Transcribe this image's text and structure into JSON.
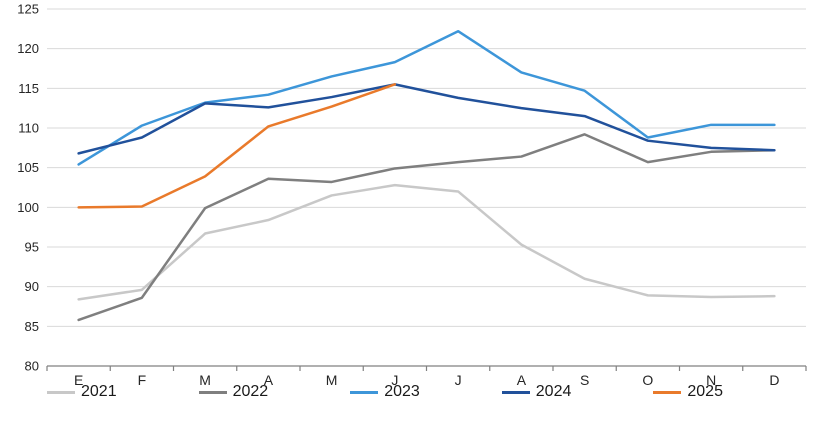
{
  "chart_data": {
    "type": "line",
    "title": "",
    "xlabel": "",
    "ylabel": "",
    "categories": [
      "E",
      "F",
      "M",
      "A",
      "M",
      "J",
      "J",
      "A",
      "S",
      "O",
      "N",
      "D"
    ],
    "series": [
      {
        "name": "2021",
        "color": "#C8C8C8",
        "values": [
          88.4,
          89.6,
          96.7,
          98.4,
          101.5,
          102.8,
          102.0,
          95.3,
          91.0,
          88.9,
          88.7,
          88.8
        ]
      },
      {
        "name": "2022",
        "color": "#7F7F7F",
        "values": [
          85.8,
          88.6,
          99.9,
          103.6,
          103.2,
          104.9,
          105.7,
          106.4,
          109.2,
          105.7,
          107.0,
          107.2
        ]
      },
      {
        "name": "2023",
        "color": "#3D96D9",
        "values": [
          105.4,
          110.3,
          113.2,
          114.2,
          116.5,
          118.3,
          122.2,
          117.0,
          114.7,
          108.8,
          110.4,
          110.4
        ]
      },
      {
        "name": "2024",
        "color": "#21519B",
        "values": [
          106.8,
          108.8,
          113.1,
          112.6,
          113.9,
          115.5,
          113.8,
          112.5,
          111.5,
          108.4,
          107.5,
          107.2
        ]
      },
      {
        "name": "2025",
        "color": "#E97A2B",
        "values": [
          100.0,
          100.1,
          103.9,
          110.2,
          112.7,
          115.5,
          null,
          null,
          null,
          null,
          null,
          null
        ]
      }
    ],
    "ylim": [
      80,
      125
    ],
    "ytick_step": 5,
    "yticks": [
      80,
      85,
      90,
      95,
      100,
      105,
      110,
      115,
      120,
      125
    ],
    "grid": "horizontal",
    "legend_position": "bottom",
    "gridline_color": "#D9D9D9",
    "axis_color": "#808080",
    "tick_label_color": "#262626",
    "background_color": "#FFFFFF"
  }
}
